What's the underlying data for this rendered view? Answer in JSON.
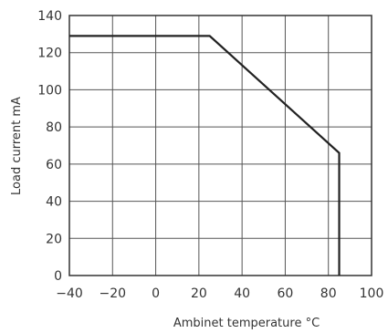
{
  "chart_data": {
    "type": "line",
    "xlabel": "Ambinet temperature °C",
    "ylabel": "Load current mA",
    "xlim": [
      -40,
      100
    ],
    "ylim": [
      0,
      140
    ],
    "x_ticks": [
      -40,
      -20,
      0,
      20,
      40,
      60,
      80,
      100
    ],
    "y_ticks": [
      0,
      20,
      40,
      60,
      80,
      100,
      120,
      140
    ],
    "x_tick_labels": [
      "−40",
      "−20",
      "0",
      "20",
      "40",
      "60",
      "80",
      "100"
    ],
    "y_tick_labels": [
      "0",
      "20",
      "40",
      "60",
      "80",
      "100",
      "120",
      "140"
    ],
    "grid": true,
    "series": [
      {
        "x": [
          -40,
          25,
          85,
          85
        ],
        "y": [
          129,
          129,
          66,
          0
        ]
      }
    ],
    "colors": {
      "line": "#222222",
      "grid": "#555555",
      "text": "#333333"
    }
  }
}
